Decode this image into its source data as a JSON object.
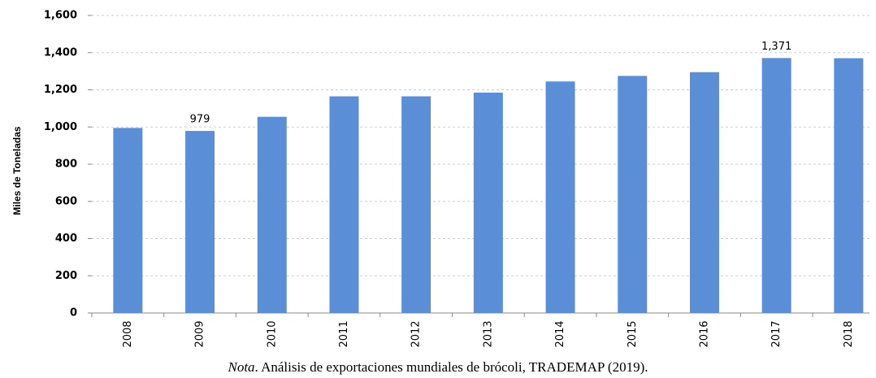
{
  "chart_data": {
    "type": "bar",
    "y_label": "Miles de Toneladas",
    "categories": [
      "2008",
      "2009",
      "2010",
      "2011",
      "2012",
      "2013",
      "2014",
      "2015",
      "2016",
      "2017",
      "2018"
    ],
    "values": [
      995,
      979,
      1055,
      1165,
      1165,
      1185,
      1245,
      1275,
      1295,
      1371,
      1370
    ],
    "value_labels": [
      null,
      "979",
      null,
      null,
      null,
      null,
      null,
      null,
      null,
      "1,371",
      null
    ],
    "color": "#5a8fd8",
    "ylim": [
      0,
      1600
    ],
    "yticks": [
      0,
      200,
      400,
      600,
      800,
      {
        "value": 1000,
        "label": "1,000"
      },
      {
        "value": 1200,
        "label": "1,200"
      },
      {
        "value": 1400,
        "label": "1,400"
      },
      {
        "value": 1600,
        "label": "1,600"
      }
    ],
    "grid": true,
    "caption": {
      "lead": "Nota",
      "text": ". Análisis de exportaciones mundiales de brócoli, TRADEMAP (2019)."
    }
  }
}
